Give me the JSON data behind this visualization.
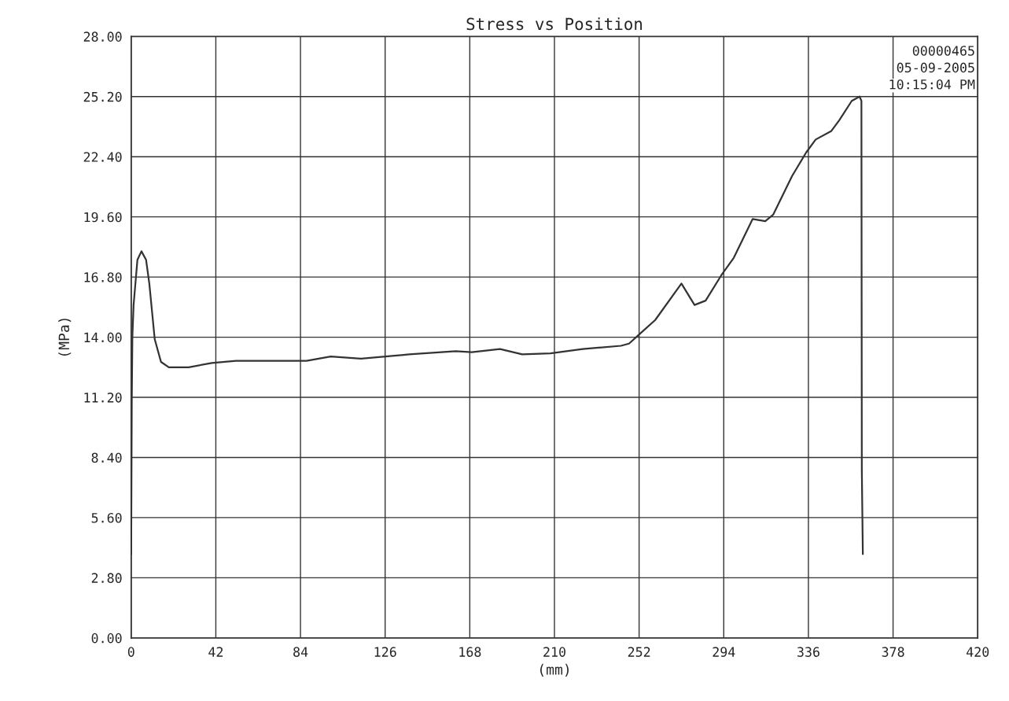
{
  "chart_data": {
    "type": "line",
    "title": "Stress vs Position",
    "xlabel": "(mm)",
    "ylabel": "(MPa)",
    "annotations": [
      "00000465",
      "05-09-2005",
      "10:15:04 PM"
    ],
    "x": [
      0,
      0.3,
      0.6,
      1.2,
      3.1,
      5.1,
      7.4,
      9,
      11.7,
      14.8,
      18.7,
      28.5,
      40,
      52,
      87,
      99,
      114,
      138,
      161,
      169,
      183,
      194,
      208,
      224,
      243,
      247,
      251.7,
      260,
      273,
      279.5,
      285,
      292.7,
      299,
      308.3,
      314.6,
      318.5,
      327.9,
      334.9,
      339.6,
      347.4,
      351.3,
      357.5,
      361.4,
      362.3,
      362.5,
      363
    ],
    "series": [
      {
        "color": "#333333",
        "values": [
          3.9,
          11.0,
          14.0,
          15.5,
          17.6,
          18.0,
          17.6,
          16.5,
          13.9,
          12.85,
          12.6,
          12.6,
          12.8,
          12.9,
          12.9,
          13.1,
          13.0,
          13.2,
          13.35,
          13.3,
          13.45,
          13.2,
          13.25,
          13.45,
          13.6,
          13.7,
          14.1,
          14.8,
          16.5,
          15.5,
          15.7,
          16.87,
          17.7,
          19.5,
          19.4,
          19.7,
          21.5,
          22.6,
          23.2,
          23.6,
          24.1,
          25.0,
          25.2,
          25.0,
          7.8,
          3.9
        ]
      }
    ],
    "xlim": [
      0,
      420
    ],
    "ylim": [
      0,
      28
    ],
    "xticks": [
      0,
      42,
      84,
      126,
      168,
      210,
      252,
      294,
      336,
      378,
      420
    ],
    "yticks": [
      {
        "value": 0,
        "label": "0.00"
      },
      {
        "value": 2.8,
        "label": "2.80"
      },
      {
        "value": 5.6,
        "label": "5.60"
      },
      {
        "value": 8.4,
        "label": "8.40"
      },
      {
        "value": 11.2,
        "label": "11.20"
      },
      {
        "value": 14.0,
        "label": "14.00"
      },
      {
        "value": 16.8,
        "label": "16.80"
      },
      {
        "value": 19.6,
        "label": "19.60"
      },
      {
        "value": 22.4,
        "label": "22.40"
      },
      {
        "value": 25.2,
        "label": "25.20"
      },
      {
        "value": 28.0,
        "label": "28.00"
      }
    ],
    "grid": true,
    "legend": false,
    "marker": "none",
    "line_style": "solid"
  }
}
